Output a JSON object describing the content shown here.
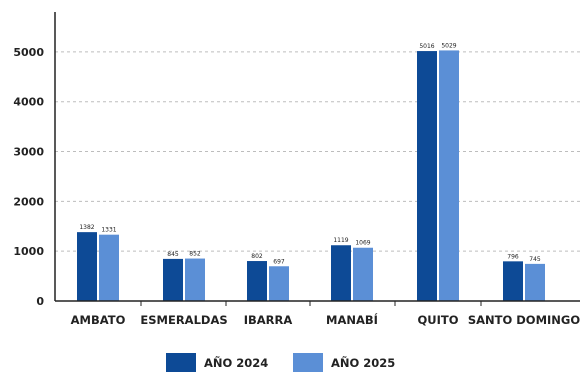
{
  "chart_data": {
    "type": "bar",
    "categories": [
      "AMBATO",
      "ESMERALDAS",
      "IBARRA",
      "MANABÍ",
      "QUITO",
      "SANTO DOMINGO"
    ],
    "series": [
      {
        "name": "AÑO 2024",
        "values": [
          1382,
          845,
          802,
          1119,
          5016,
          796
        ],
        "color": "#0D4A96"
      },
      {
        "name": "AÑO 2025",
        "values": [
          1331,
          852,
          697,
          1069,
          5029,
          745
        ],
        "color": "#5B8FD6"
      }
    ],
    "data_labels": [
      [
        "1382",
        "845",
        "802",
        "1119",
        "5016",
        "796"
      ],
      [
        "1331",
        "852",
        "697",
        "1069",
        "5029",
        "745"
      ]
    ],
    "y_ticks": [
      "0",
      "1000",
      "2000",
      "3000",
      "4000",
      "5000"
    ],
    "ylim": [
      0,
      5800
    ],
    "grid": "dashed horizontal",
    "legend_position": "bottom-center",
    "colors": {
      "axis": "#222222",
      "grid": "#bdbdbd",
      "text": "#222222"
    }
  }
}
